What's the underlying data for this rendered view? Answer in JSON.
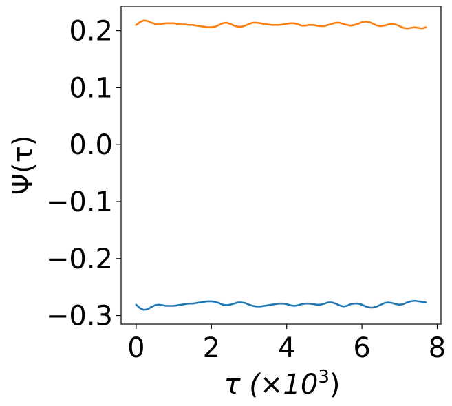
{
  "chart_data": {
    "type": "line",
    "xlabel": {
      "base": "τ (×10",
      "sup": "3",
      "close": ")"
    },
    "ylabel": "Ψ(τ)",
    "xlim": [
      -0.4,
      8.1
    ],
    "ylim": [
      -0.315,
      0.243
    ],
    "xticks": [
      0,
      2,
      4,
      6,
      8
    ],
    "xtick_labels": [
      "0",
      "2",
      "4",
      "6",
      "8"
    ],
    "yticks": [
      -0.3,
      -0.2,
      -0.1,
      0.0,
      0.1,
      0.2
    ],
    "ytick_labels": [
      "−0.3",
      "−0.2",
      "−0.1",
      "0.0",
      "0.1",
      "0.2"
    ],
    "grid": false,
    "series": [
      {
        "color": "#1f77b4",
        "x": [
          0.0,
          0.1,
          0.2,
          0.3,
          0.4,
          0.5,
          0.6,
          0.7,
          0.8,
          0.9,
          1.0,
          1.1,
          1.2,
          1.3,
          1.4,
          1.5,
          1.6,
          1.7,
          1.8,
          1.9,
          2.0,
          2.1,
          2.2,
          2.3,
          2.4,
          2.5,
          2.6,
          2.7,
          2.8,
          2.9,
          3.0,
          3.1,
          3.2,
          3.3,
          3.4,
          3.5,
          3.6,
          3.7,
          3.8,
          3.9,
          4.0,
          4.1,
          4.2,
          4.3,
          4.4,
          4.5,
          4.6,
          4.7,
          4.8,
          4.9,
          5.0,
          5.1,
          5.2,
          5.3,
          5.4,
          5.5,
          5.6,
          5.7,
          5.8,
          5.9,
          6.0,
          6.1,
          6.2,
          6.3,
          6.4,
          6.5,
          6.6,
          6.7,
          6.8,
          6.9,
          7.0,
          7.1,
          7.2,
          7.3,
          7.4,
          7.5,
          7.6,
          7.7
        ],
        "y": [
          -0.281,
          -0.287,
          -0.29,
          -0.289,
          -0.285,
          -0.282,
          -0.281,
          -0.282,
          -0.283,
          -0.283,
          -0.283,
          -0.282,
          -0.281,
          -0.28,
          -0.279,
          -0.279,
          -0.278,
          -0.277,
          -0.276,
          -0.275,
          -0.275,
          -0.276,
          -0.278,
          -0.281,
          -0.282,
          -0.281,
          -0.279,
          -0.277,
          -0.277,
          -0.278,
          -0.281,
          -0.283,
          -0.284,
          -0.284,
          -0.283,
          -0.282,
          -0.281,
          -0.28,
          -0.279,
          -0.279,
          -0.28,
          -0.282,
          -0.283,
          -0.282,
          -0.28,
          -0.279,
          -0.279,
          -0.28,
          -0.281,
          -0.281,
          -0.279,
          -0.277,
          -0.277,
          -0.279,
          -0.282,
          -0.284,
          -0.283,
          -0.28,
          -0.279,
          -0.279,
          -0.281,
          -0.284,
          -0.286,
          -0.286,
          -0.284,
          -0.281,
          -0.278,
          -0.277,
          -0.278,
          -0.28,
          -0.281,
          -0.28,
          -0.277,
          -0.275,
          -0.274,
          -0.275,
          -0.276,
          -0.277
        ]
      },
      {
        "color": "#ff7f0e",
        "x": [
          0.0,
          0.1,
          0.2,
          0.3,
          0.4,
          0.5,
          0.6,
          0.7,
          0.8,
          0.9,
          1.0,
          1.1,
          1.2,
          1.3,
          1.4,
          1.5,
          1.6,
          1.7,
          1.8,
          1.9,
          2.0,
          2.1,
          2.2,
          2.3,
          2.4,
          2.5,
          2.6,
          2.7,
          2.8,
          2.9,
          3.0,
          3.1,
          3.2,
          3.3,
          3.4,
          3.5,
          3.6,
          3.7,
          3.8,
          3.9,
          4.0,
          4.1,
          4.2,
          4.3,
          4.4,
          4.5,
          4.6,
          4.7,
          4.8,
          4.9,
          5.0,
          5.1,
          5.2,
          5.3,
          5.4,
          5.5,
          5.6,
          5.7,
          5.8,
          5.9,
          6.0,
          6.1,
          6.2,
          6.3,
          6.4,
          6.5,
          6.6,
          6.7,
          6.8,
          6.9,
          7.0,
          7.1,
          7.2,
          7.3,
          7.4,
          7.5,
          7.6,
          7.7
        ],
        "y": [
          0.21,
          0.215,
          0.218,
          0.217,
          0.214,
          0.212,
          0.211,
          0.212,
          0.213,
          0.213,
          0.213,
          0.212,
          0.211,
          0.211,
          0.21,
          0.21,
          0.209,
          0.208,
          0.207,
          0.206,
          0.206,
          0.207,
          0.21,
          0.213,
          0.214,
          0.212,
          0.209,
          0.207,
          0.207,
          0.209,
          0.212,
          0.214,
          0.214,
          0.213,
          0.212,
          0.211,
          0.21,
          0.21,
          0.21,
          0.211,
          0.212,
          0.213,
          0.213,
          0.211,
          0.209,
          0.209,
          0.21,
          0.21,
          0.209,
          0.208,
          0.208,
          0.21,
          0.212,
          0.214,
          0.214,
          0.212,
          0.21,
          0.209,
          0.21,
          0.212,
          0.215,
          0.216,
          0.215,
          0.212,
          0.209,
          0.208,
          0.209,
          0.211,
          0.212,
          0.211,
          0.208,
          0.205,
          0.204,
          0.205,
          0.206,
          0.205,
          0.204,
          0.206
        ]
      }
    ]
  }
}
